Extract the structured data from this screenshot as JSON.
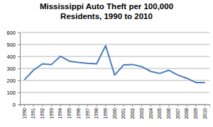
{
  "chart_data": {
    "type": "line",
    "title": "Mississippi Auto Theft per 100,000 Residents, 1990 to 2010",
    "categories": [
      "1990",
      "1991",
      "1992",
      "1993",
      "1994",
      "1995",
      "1996",
      "1997",
      "1998",
      "1999",
      "2000",
      "2001",
      "2002",
      "2003",
      "2004",
      "2005",
      "2006",
      "2007",
      "2008",
      "2009",
      "2010"
    ],
    "values": [
      205,
      285,
      338,
      333,
      402,
      360,
      350,
      342,
      338,
      490,
      245,
      330,
      333,
      315,
      275,
      258,
      285,
      245,
      218,
      183,
      183
    ],
    "color": "#4a7ebb",
    "ylim": [
      0,
      600
    ],
    "yticks": [
      0,
      100,
      200,
      300,
      400,
      500,
      600
    ],
    "grid": true
  }
}
